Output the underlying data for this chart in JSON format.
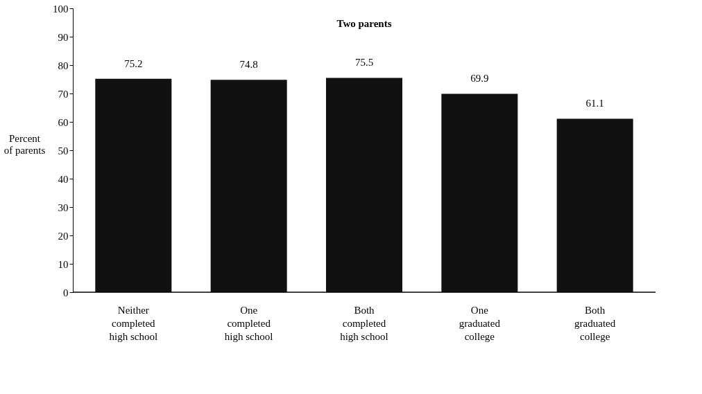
{
  "chart_data": {
    "type": "bar",
    "title": "Two parents",
    "ylabel": "Percent\nof parents",
    "categories": [
      "Neither\ncompleted\nhigh school",
      "One\ncompleted\nhigh school",
      "Both\ncompleted\nhigh school",
      "One\ngraduated\ncollege",
      "Both\ngraduated\ncollege"
    ],
    "values": [
      75.2,
      74.8,
      75.5,
      69.9,
      61.1
    ],
    "color": "#111111",
    "ylim": [
      0,
      100
    ],
    "yticks": [
      0,
      10,
      20,
      30,
      40,
      50,
      60,
      70,
      80,
      90,
      100
    ],
    "grid": false,
    "data_labels": true
  }
}
